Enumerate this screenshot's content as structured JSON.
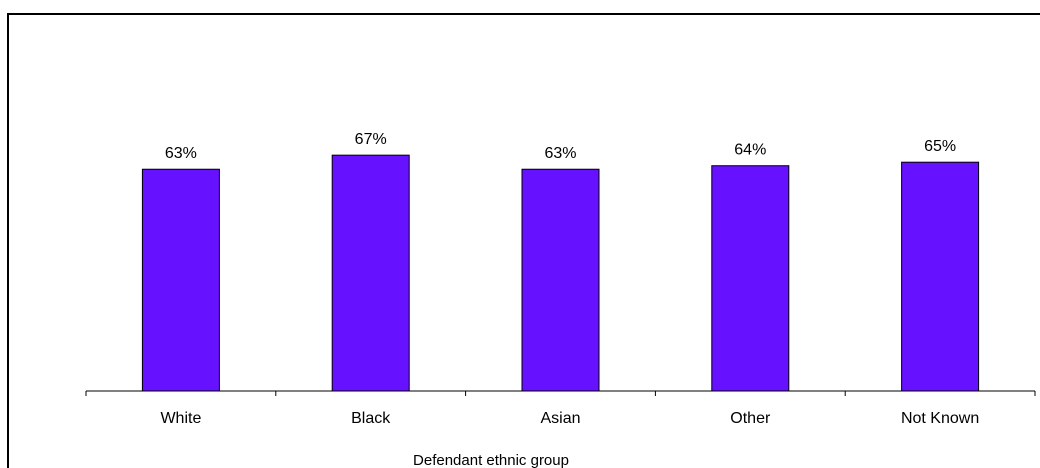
{
  "chart_data": {
    "type": "bar",
    "title": "",
    "xlabel": "Defendant ethnic group",
    "ylabel": "",
    "categories": [
      "White",
      "Black",
      "Asian",
      "Other",
      "Not Known"
    ],
    "values": [
      63,
      67,
      63,
      64,
      65
    ],
    "value_labels": [
      "63%",
      "67%",
      "63%",
      "64%",
      "65%"
    ],
    "ylim": [
      0,
      100
    ],
    "unit": "%",
    "grid": false,
    "legend": "none",
    "colors": {
      "bar_fill": "#6611ff",
      "bar_stroke": "#000000",
      "axis": "#000000",
      "background": "#ffffff"
    }
  }
}
